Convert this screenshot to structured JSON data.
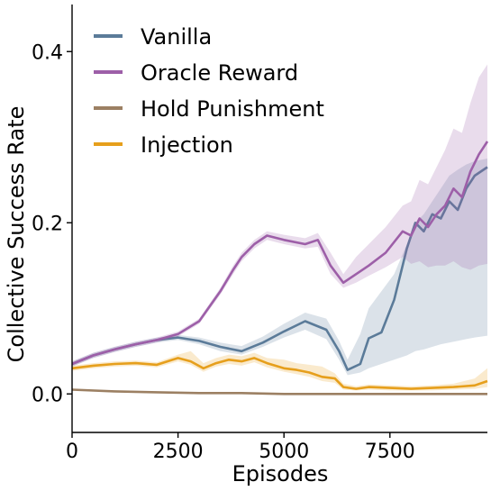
{
  "chart_data": {
    "type": "line",
    "title": "",
    "xlabel": "Episodes",
    "ylabel": "Collective Success Rate",
    "xlim": [
      0,
      9800
    ],
    "ylim": [
      -0.045,
      0.455
    ],
    "xticks": [
      0,
      2500,
      5000,
      7500
    ],
    "xtick_labels": [
      "0",
      "2500",
      "5000",
      "7500"
    ],
    "yticks": [
      0.0,
      0.2,
      0.4
    ],
    "ytick_labels": [
      "0.0",
      "0.2",
      "0.4"
    ],
    "grid": false,
    "legend_position": "top-left",
    "series": [
      {
        "name": "Vanilla",
        "color": "#5b7b99",
        "x": [
          0,
          500,
          1000,
          1500,
          2000,
          2500,
          3000,
          3500,
          4000,
          4500,
          5000,
          5500,
          6000,
          6300,
          6500,
          6800,
          7000,
          7300,
          7600,
          7900,
          8100,
          8300,
          8500,
          8700,
          8900,
          9100,
          9300,
          9500,
          9800
        ],
        "y": [
          0.035,
          0.045,
          0.052,
          0.058,
          0.063,
          0.066,
          0.062,
          0.055,
          0.05,
          0.06,
          0.073,
          0.085,
          0.075,
          0.05,
          0.028,
          0.035,
          0.065,
          0.072,
          0.11,
          0.17,
          0.2,
          0.19,
          0.21,
          0.205,
          0.225,
          0.215,
          0.24,
          0.255,
          0.265
        ],
        "lower": [
          0.032,
          0.042,
          0.049,
          0.055,
          0.06,
          0.063,
          0.058,
          0.05,
          0.046,
          0.055,
          0.066,
          0.075,
          0.064,
          0.04,
          0.022,
          0.025,
          0.03,
          0.035,
          0.04,
          0.045,
          0.05,
          0.052,
          0.055,
          0.058,
          0.06,
          0.062,
          0.064,
          0.066,
          0.068
        ],
        "upper": [
          0.038,
          0.048,
          0.055,
          0.061,
          0.066,
          0.069,
          0.066,
          0.06,
          0.056,
          0.067,
          0.082,
          0.095,
          0.088,
          0.062,
          0.04,
          0.07,
          0.1,
          0.12,
          0.14,
          0.175,
          0.2,
          0.21,
          0.225,
          0.24,
          0.255,
          0.262,
          0.268,
          0.272,
          0.275
        ]
      },
      {
        "name": "Oracle Reward",
        "color": "#9d5fa8",
        "x": [
          0,
          500,
          1000,
          1500,
          2000,
          2500,
          3000,
          3500,
          3800,
          4000,
          4300,
          4600,
          5000,
          5500,
          5800,
          6100,
          6400,
          6700,
          7000,
          7400,
          7800,
          8000,
          8200,
          8400,
          8600,
          8800,
          9000,
          9200,
          9400,
          9600,
          9800
        ],
        "y": [
          0.035,
          0.045,
          0.052,
          0.058,
          0.063,
          0.07,
          0.085,
          0.12,
          0.145,
          0.16,
          0.175,
          0.185,
          0.18,
          0.175,
          0.18,
          0.15,
          0.13,
          0.14,
          0.15,
          0.165,
          0.19,
          0.185,
          0.205,
          0.195,
          0.21,
          0.22,
          0.24,
          0.23,
          0.26,
          0.28,
          0.295
        ],
        "lower": [
          0.032,
          0.042,
          0.049,
          0.055,
          0.06,
          0.067,
          0.082,
          0.116,
          0.14,
          0.155,
          0.17,
          0.18,
          0.175,
          0.17,
          0.172,
          0.14,
          0.124,
          0.13,
          0.138,
          0.148,
          0.16,
          0.152,
          0.155,
          0.148,
          0.15,
          0.15,
          0.155,
          0.148,
          0.145,
          0.15,
          0.152
        ],
        "upper": [
          0.038,
          0.048,
          0.055,
          0.061,
          0.066,
          0.073,
          0.088,
          0.124,
          0.15,
          0.165,
          0.18,
          0.19,
          0.186,
          0.182,
          0.188,
          0.165,
          0.14,
          0.16,
          0.175,
          0.195,
          0.22,
          0.225,
          0.25,
          0.245,
          0.265,
          0.285,
          0.31,
          0.305,
          0.34,
          0.37,
          0.385
        ]
      },
      {
        "name": "Hold Punishment",
        "color": "#9c8063",
        "x": [
          0,
          1000,
          2000,
          3000,
          4000,
          5000,
          6000,
          7000,
          8000,
          9000,
          9800
        ],
        "y": [
          0.005,
          0.003,
          0.002,
          0.001,
          0.001,
          0.0,
          0.0,
          0.0,
          0.0,
          0.0,
          0.0
        ],
        "lower": [
          0.004,
          0.002,
          0.001,
          0.0,
          0.0,
          0.0,
          0.0,
          0.0,
          0.0,
          0.0,
          0.0
        ],
        "upper": [
          0.006,
          0.004,
          0.003,
          0.002,
          0.002,
          0.001,
          0.001,
          0.001,
          0.001,
          0.001,
          0.001
        ]
      },
      {
        "name": "Injection",
        "color": "#e69f1c",
        "x": [
          0,
          500,
          1000,
          1500,
          2000,
          2500,
          2800,
          3100,
          3400,
          3700,
          4000,
          4300,
          4600,
          5000,
          5300,
          5600,
          5900,
          6200,
          6400,
          6700,
          7000,
          7500,
          8000,
          8500,
          9000,
          9500,
          9800
        ],
        "y": [
          0.03,
          0.033,
          0.035,
          0.036,
          0.034,
          0.042,
          0.038,
          0.03,
          0.036,
          0.04,
          0.038,
          0.042,
          0.036,
          0.03,
          0.028,
          0.025,
          0.02,
          0.018,
          0.008,
          0.006,
          0.008,
          0.007,
          0.006,
          0.007,
          0.008,
          0.01,
          0.015
        ],
        "lower": [
          0.027,
          0.03,
          0.032,
          0.033,
          0.031,
          0.038,
          0.034,
          0.026,
          0.032,
          0.035,
          0.033,
          0.037,
          0.031,
          0.026,
          0.023,
          0.02,
          0.015,
          0.013,
          0.005,
          0.004,
          0.005,
          0.004,
          0.004,
          0.004,
          0.005,
          0.006,
          0.008
        ],
        "upper": [
          0.033,
          0.036,
          0.038,
          0.039,
          0.037,
          0.046,
          0.05,
          0.036,
          0.042,
          0.046,
          0.044,
          0.048,
          0.042,
          0.04,
          0.036,
          0.034,
          0.032,
          0.024,
          0.012,
          0.009,
          0.011,
          0.01,
          0.009,
          0.01,
          0.012,
          0.018,
          0.03
        ]
      }
    ]
  }
}
